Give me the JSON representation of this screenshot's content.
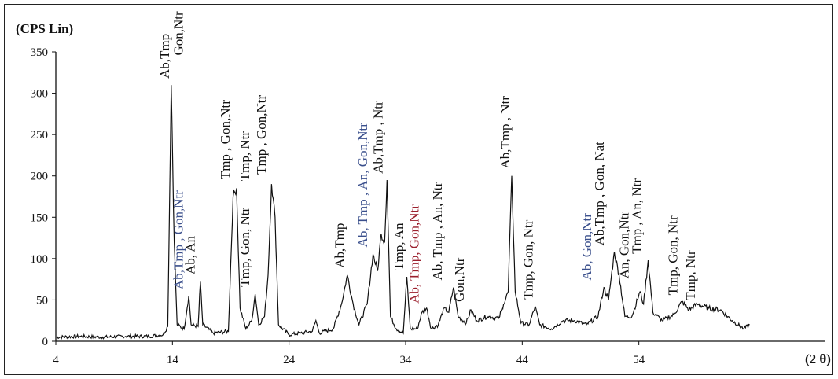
{
  "colors": {
    "black": "#111111",
    "blue": "#3a4f8c",
    "red": "#9b1f2d",
    "frame": "#222222"
  },
  "chart_data": {
    "type": "line",
    "title": "",
    "ylabel": "(CPS Lin)",
    "xlabel": "(2 θ)",
    "xlim": [
      4,
      70
    ],
    "ylim": [
      0,
      350
    ],
    "xticks": [
      4,
      14,
      24,
      34,
      44,
      54
    ],
    "yticks": [
      0,
      50,
      100,
      150,
      200,
      250,
      300,
      350
    ],
    "grid": false,
    "legend": "none",
    "peaks": [
      {
        "x": 4,
        "y": 5
      },
      {
        "x": 6,
        "y": 6
      },
      {
        "x": 8,
        "y": 5
      },
      {
        "x": 10,
        "y": 6
      },
      {
        "x": 12,
        "y": 6
      },
      {
        "x": 13.2,
        "y": 8
      },
      {
        "x": 13.6,
        "y": 18
      },
      {
        "x": 13.9,
        "y": 310
      },
      {
        "x": 14.15,
        "y": 120
      },
      {
        "x": 14.4,
        "y": 20
      },
      {
        "x": 15,
        "y": 15
      },
      {
        "x": 15.4,
        "y": 55
      },
      {
        "x": 15.6,
        "y": 20
      },
      {
        "x": 16.2,
        "y": 18
      },
      {
        "x": 16.4,
        "y": 72
      },
      {
        "x": 16.6,
        "y": 20
      },
      {
        "x": 17.5,
        "y": 10
      },
      {
        "x": 18.8,
        "y": 12
      },
      {
        "x": 19.2,
        "y": 175
      },
      {
        "x": 19.5,
        "y": 185
      },
      {
        "x": 19.8,
        "y": 40
      },
      {
        "x": 20.3,
        "y": 15
      },
      {
        "x": 20.8,
        "y": 25
      },
      {
        "x": 21.1,
        "y": 57
      },
      {
        "x": 21.4,
        "y": 20
      },
      {
        "x": 21.9,
        "y": 30
      },
      {
        "x": 22.2,
        "y": 80
      },
      {
        "x": 22.5,
        "y": 190
      },
      {
        "x": 22.8,
        "y": 150
      },
      {
        "x": 23.1,
        "y": 20
      },
      {
        "x": 24,
        "y": 8
      },
      {
        "x": 25,
        "y": 10
      },
      {
        "x": 26,
        "y": 12
      },
      {
        "x": 26.3,
        "y": 25
      },
      {
        "x": 26.6,
        "y": 10
      },
      {
        "x": 27.8,
        "y": 15
      },
      {
        "x": 28.5,
        "y": 45
      },
      {
        "x": 29,
        "y": 80
      },
      {
        "x": 29.5,
        "y": 45
      },
      {
        "x": 30,
        "y": 20
      },
      {
        "x": 30.7,
        "y": 45
      },
      {
        "x": 31.2,
        "y": 105
      },
      {
        "x": 31.6,
        "y": 85
      },
      {
        "x": 31.9,
        "y": 130
      },
      {
        "x": 32.2,
        "y": 120
      },
      {
        "x": 32.4,
        "y": 195
      },
      {
        "x": 32.7,
        "y": 30
      },
      {
        "x": 33.2,
        "y": 15
      },
      {
        "x": 33.8,
        "y": 10
      },
      {
        "x": 34.1,
        "y": 78
      },
      {
        "x": 34.4,
        "y": 15
      },
      {
        "x": 35,
        "y": 15
      },
      {
        "x": 35.4,
        "y": 35
      },
      {
        "x": 35.8,
        "y": 40
      },
      {
        "x": 36.2,
        "y": 15
      },
      {
        "x": 36.8,
        "y": 20
      },
      {
        "x": 37.3,
        "y": 40
      },
      {
        "x": 37.7,
        "y": 35
      },
      {
        "x": 38.1,
        "y": 65
      },
      {
        "x": 38.5,
        "y": 30
      },
      {
        "x": 39.2,
        "y": 22
      },
      {
        "x": 39.6,
        "y": 38
      },
      {
        "x": 40.1,
        "y": 25
      },
      {
        "x": 41,
        "y": 30
      },
      {
        "x": 42,
        "y": 28
      },
      {
        "x": 42.4,
        "y": 45
      },
      {
        "x": 42.8,
        "y": 60
      },
      {
        "x": 43.1,
        "y": 200
      },
      {
        "x": 43.4,
        "y": 60
      },
      {
        "x": 43.9,
        "y": 22
      },
      {
        "x": 44.6,
        "y": 20
      },
      {
        "x": 45.1,
        "y": 42
      },
      {
        "x": 45.5,
        "y": 20
      },
      {
        "x": 46.5,
        "y": 15
      },
      {
        "x": 47.5,
        "y": 25
      },
      {
        "x": 48.5,
        "y": 25
      },
      {
        "x": 49.5,
        "y": 20
      },
      {
        "x": 50.5,
        "y": 30
      },
      {
        "x": 51,
        "y": 65
      },
      {
        "x": 51.4,
        "y": 50
      },
      {
        "x": 51.9,
        "y": 108
      },
      {
        "x": 52.3,
        "y": 80
      },
      {
        "x": 52.8,
        "y": 30
      },
      {
        "x": 53.4,
        "y": 30
      },
      {
        "x": 54.1,
        "y": 60
      },
      {
        "x": 54.4,
        "y": 45
      },
      {
        "x": 54.8,
        "y": 98
      },
      {
        "x": 55.2,
        "y": 35
      },
      {
        "x": 56,
        "y": 25
      },
      {
        "x": 57,
        "y": 32
      },
      {
        "x": 57.7,
        "y": 48
      },
      {
        "x": 58.3,
        "y": 38
      },
      {
        "x": 59,
        "y": 45
      },
      {
        "x": 60,
        "y": 40
      },
      {
        "x": 61,
        "y": 38
      },
      {
        "x": 62,
        "y": 25
      },
      {
        "x": 63,
        "y": 15
      },
      {
        "x": 63.5,
        "y": 20
      }
    ],
    "annotations": [
      {
        "x": 13.7,
        "y": 312,
        "lines": [
          "Ab,Tmp"
        ],
        "color": "black"
      },
      {
        "x": 14.9,
        "y": 340,
        "lines": [
          "Gon,Ntr"
        ],
        "color": "black"
      },
      {
        "x": 14.9,
        "y": 57,
        "lines": [
          "Ab,Tmp , Gon,Ntr"
        ],
        "color": "blue"
      },
      {
        "x": 15.9,
        "y": 75,
        "lines": [
          "Ab, An"
        ],
        "color": "black"
      },
      {
        "x": 18.9,
        "y": 190,
        "lines": [
          "Tmp , Gon,Ntr"
        ],
        "color": "black"
      },
      {
        "x": 20.6,
        "y": 60,
        "lines": [
          "Tmp, Gon, Ntr"
        ],
        "color": "black"
      },
      {
        "x": 20.6,
        "y": 188,
        "lines": [
          "Tmp, Ntr"
        ],
        "color": "black"
      },
      {
        "x": 22.0,
        "y": 196,
        "lines": [
          "Tmp , Gon,Ntr"
        ],
        "color": "black"
      },
      {
        "x": 28.7,
        "y": 83,
        "lines": [
          "Ab,Tmp"
        ],
        "color": "black"
      },
      {
        "x": 30.7,
        "y": 108,
        "lines": [
          "Ab, Tmp , An, Gon,Ntr"
        ],
        "color": "blue"
      },
      {
        "x": 32.0,
        "y": 197,
        "lines": [
          "Ab,Tmp , Ntr"
        ],
        "color": "black"
      },
      {
        "x": 33.8,
        "y": 80,
        "lines": [
          "Tmp, An"
        ],
        "color": "black"
      },
      {
        "x": 35.1,
        "y": 40,
        "lines": [
          "Ab, Tmp, Gon,Ntr"
        ],
        "color": "red"
      },
      {
        "x": 37.1,
        "y": 68,
        "lines": [
          "Ab, Tmp , An, Ntr"
        ],
        "color": "black"
      },
      {
        "x": 39.0,
        "y": 42,
        "lines": [
          "Gon,Ntr"
        ],
        "color": "black"
      },
      {
        "x": 42.9,
        "y": 203,
        "lines": [
          "Ab,Tmp , Ntr"
        ],
        "color": "black"
      },
      {
        "x": 44.9,
        "y": 45,
        "lines": [
          "Tmp, Gon, Ntr"
        ],
        "color": "black"
      },
      {
        "x": 49.9,
        "y": 68,
        "lines": [
          "Ab, Gon,Ntr"
        ],
        "color": "blue"
      },
      {
        "x": 51.0,
        "y": 110,
        "lines": [
          "Ab,Tmp , Gon, Nat"
        ],
        "color": "black"
      },
      {
        "x": 53.1,
        "y": 70,
        "lines": [
          "An, Gon,Ntr"
        ],
        "color": "black"
      },
      {
        "x": 54.2,
        "y": 100,
        "lines": [
          "Tmp , An, Ntr"
        ],
        "color": "black"
      },
      {
        "x": 57.3,
        "y": 50,
        "lines": [
          "Tmp, Gon, Ntr"
        ],
        "color": "black"
      },
      {
        "x": 58.8,
        "y": 44,
        "lines": [
          "Tmp, Ntr"
        ],
        "color": "black"
      }
    ]
  }
}
